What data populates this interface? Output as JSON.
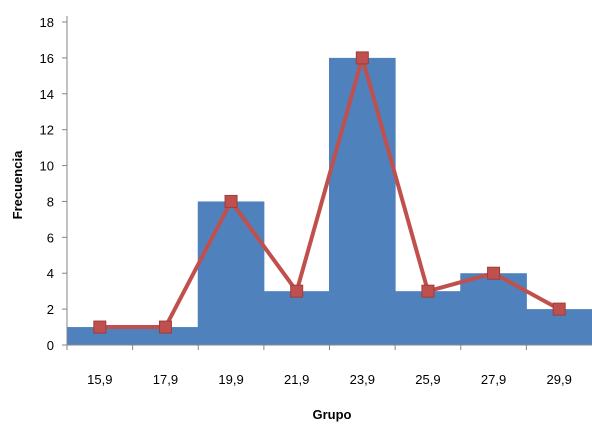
{
  "chart_data": {
    "type": "bar",
    "title": "",
    "xlabel": "Grupo",
    "ylabel": "Frecuencia",
    "categories": [
      "15,9",
      "17,9",
      "19,9",
      "21,9",
      "23,9",
      "25,9",
      "27,9",
      "29,9"
    ],
    "series": [
      {
        "type": "bar",
        "values": [
          1,
          1,
          8,
          3,
          16,
          3,
          4,
          2
        ],
        "color": "#4f81bd"
      },
      {
        "type": "line",
        "values": [
          1,
          1,
          8,
          3,
          16,
          3,
          4,
          2
        ],
        "color": "#c0504d",
        "marker": "square"
      }
    ],
    "ylim": [
      0,
      18
    ],
    "yticks": [
      "0",
      "2",
      "4",
      "6",
      "8",
      "10",
      "12",
      "14",
      "16",
      "18"
    ],
    "grid": false,
    "legend": "none"
  }
}
